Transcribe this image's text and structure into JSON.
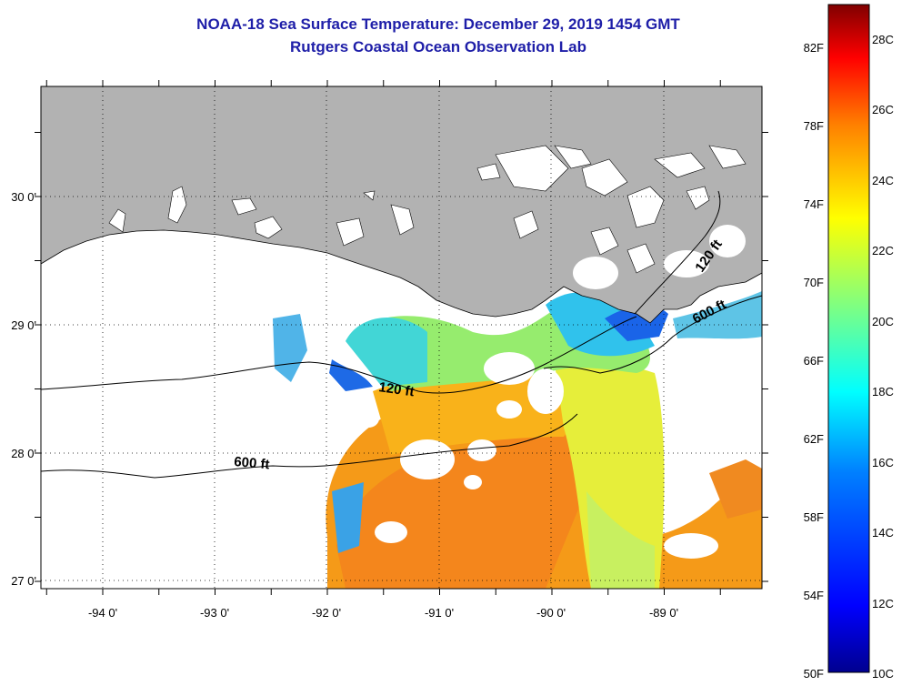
{
  "header": {
    "title": "NOAA-18 Sea Surface Temperature:  December 29, 2019 1454 GMT",
    "subtitle": "Rutgers Coastal Ocean Observation Lab"
  },
  "map": {
    "lat_labels": [
      "30 0'",
      "29 0'",
      "28 0'",
      "27 0'"
    ],
    "lon_labels": [
      "-94 0'",
      "-93 0'",
      "-92 0'",
      "-91 0'",
      "-90 0'",
      "-89 0'"
    ],
    "contour_labels": [
      "120 ft",
      "120 ft",
      "600 ft",
      "600 ft"
    ],
    "land_color": "#b2b2b2"
  },
  "colorbar": {
    "f_labels": [
      "82F",
      "78F",
      "74F",
      "70F",
      "66F",
      "62F",
      "58F",
      "54F",
      "50F"
    ],
    "c_labels": [
      "28C",
      "26C",
      "24C",
      "22C",
      "20C",
      "18C",
      "16C",
      "14C",
      "12C",
      "10C"
    ],
    "min_c": 10,
    "max_c": 29.5,
    "colors": [
      "#00008f",
      "#0000ff",
      "#0080ff",
      "#00ffff",
      "#80ff80",
      "#ffff00",
      "#ff8000",
      "#ff0000",
      "#800000"
    ]
  }
}
